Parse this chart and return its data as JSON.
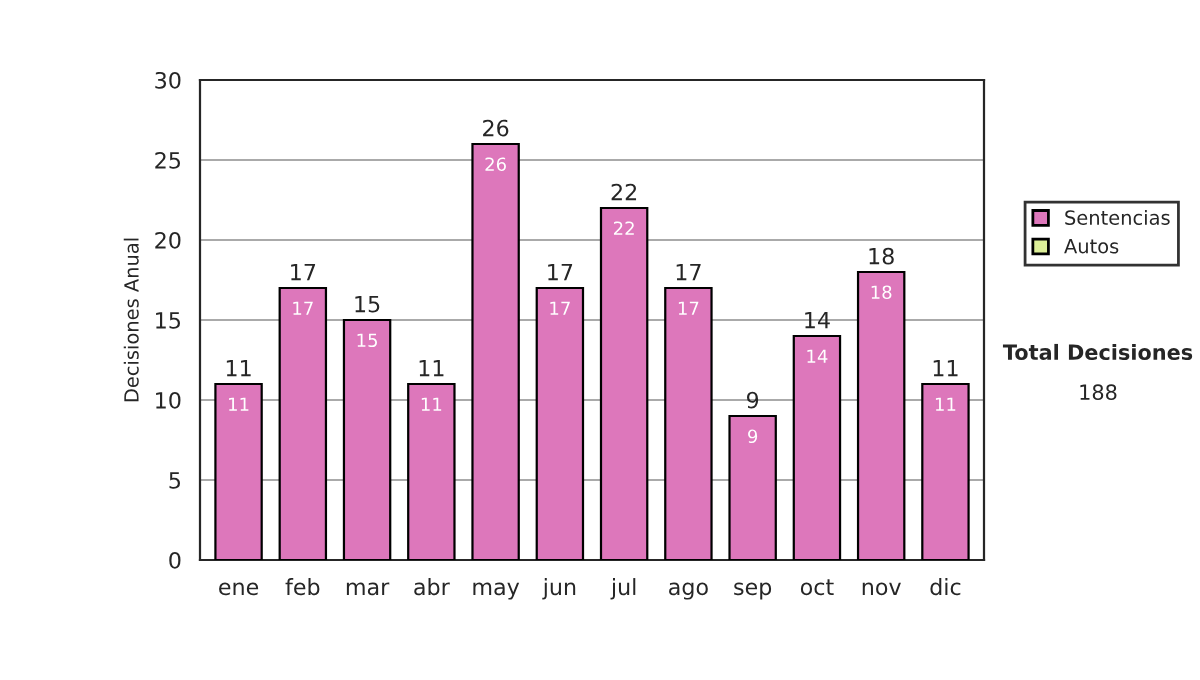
{
  "chart_data": {
    "type": "bar",
    "stacked": true,
    "ylabel": "Decisiones Anual",
    "categories": [
      "ene",
      "feb",
      "mar",
      "abr",
      "may",
      "jun",
      "jul",
      "ago",
      "sep",
      "oct",
      "nov",
      "dic"
    ],
    "series": [
      {
        "name": "Sentencias",
        "color": "#dd77bb",
        "values": [
          11,
          17,
          15,
          11,
          26,
          17,
          22,
          17,
          9,
          14,
          18,
          11
        ],
        "value_labels": [
          "11",
          "17",
          "15",
          "11",
          "26",
          "17",
          "22",
          "17",
          "9",
          "14",
          "18",
          "11"
        ]
      },
      {
        "name": "Autos",
        "color": "#ddf099",
        "values": [
          null,
          null,
          null,
          null,
          null,
          null,
          null,
          null,
          null,
          null,
          null,
          null
        ]
      }
    ],
    "totals": [
      "11",
      "17",
      "15",
      "11",
      "26",
      "17",
      "22",
      "17",
      "9",
      "14",
      "18",
      "11"
    ],
    "ylim": [
      0,
      30
    ],
    "yticks": [
      0,
      5,
      10,
      15,
      20,
      25,
      30
    ],
    "grid": "y",
    "legend": "right",
    "annotations": [
      "Total Decisiones",
      "188"
    ]
  }
}
